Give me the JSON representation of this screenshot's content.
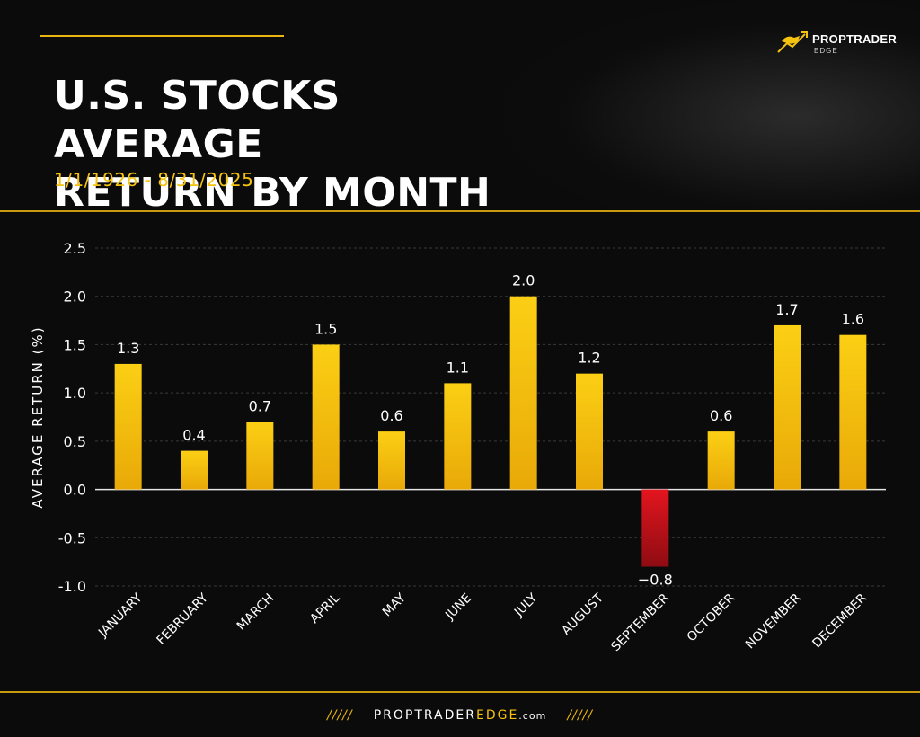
{
  "header": {
    "title_line1": "U.S. STOCKS AVERAGE",
    "title_line2": "RETURN BY MONTH",
    "subtitle": "1/1/1926 - 8/31/2025"
  },
  "logo": {
    "name": "PROPTRADER",
    "sub": "EDGE",
    "icon": "bull-icon"
  },
  "footer": {
    "site_part1": "PROPTRADER",
    "site_part2": "EDGE",
    "site_part3": ".com",
    "slashes_left": "/////",
    "slashes_right": "/////"
  },
  "colors": {
    "accent": "#f5c210",
    "positive_bar": "#f7c50e",
    "negative_bar": "#d7141c",
    "background": "#0b0b0b"
  },
  "chart_data": {
    "type": "bar",
    "categories": [
      "JANUARY",
      "FEBRUARY",
      "MARCH",
      "APRIL",
      "MAY",
      "JUNE",
      "JULY",
      "AUGUST",
      "SEPTEMBER",
      "OCTOBER",
      "NOVEMBER",
      "DECEMBER"
    ],
    "values": [
      1.3,
      0.4,
      0.7,
      1.5,
      0.6,
      1.1,
      2.0,
      1.2,
      -0.8,
      0.6,
      1.7,
      1.6
    ],
    "value_labels": [
      "1.3",
      "0.4",
      "0.7",
      "1.5",
      "0.6",
      "1.1",
      "2.0",
      "1.2",
      "−0.8",
      "0.6",
      "1.7",
      "1.6"
    ],
    "title": "U.S. STOCKS AVERAGE RETURN BY MONTH",
    "subtitle": "1/1/1926 - 8/31/2025",
    "xlabel": "",
    "ylabel": "AVERAGE RETURN (%)",
    "ylim": [
      -1.0,
      2.5
    ],
    "yticks": [
      "2.5",
      "2.0",
      "1.5",
      "1.0",
      "0.5",
      "0.0",
      "-0.5",
      "-1.0"
    ],
    "ytick_values": [
      2.5,
      2.0,
      1.5,
      1.0,
      0.5,
      0.0,
      -0.5,
      -1.0
    ],
    "grid": true,
    "legend": "none"
  }
}
